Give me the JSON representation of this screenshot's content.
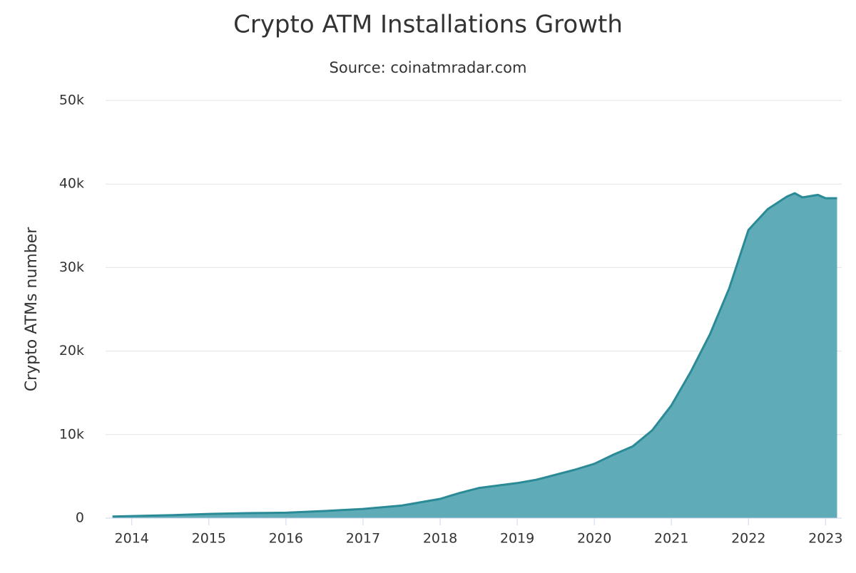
{
  "chart_data": {
    "type": "area",
    "title": "Crypto ATM Installations Growth",
    "subtitle": "Source: coinatmradar.com",
    "y_label": "Crypto ATMs number",
    "x": [
      2013.75,
      2014,
      2014.5,
      2015,
      2015.5,
      2016,
      2016.5,
      2017,
      2017.5,
      2018,
      2018.25,
      2018.5,
      2018.75,
      2019,
      2019.25,
      2019.5,
      2019.75,
      2020,
      2020.25,
      2020.5,
      2020.75,
      2021,
      2021.25,
      2021.5,
      2021.75,
      2022,
      2022.25,
      2022.5,
      2022.6,
      2022.7,
      2022.9,
      2023,
      2023.15
    ],
    "series": [
      {
        "name": "Crypto ATMs",
        "color": "#2a8b97",
        "fill": "#5fabb7",
        "values": [
          200,
          250,
          350,
          500,
          600,
          650,
          850,
          1100,
          1500,
          2300,
          3000,
          3600,
          3900,
          4200,
          4600,
          5200,
          5800,
          6500,
          7600,
          8600,
          10500,
          13500,
          17500,
          22000,
          27500,
          34500,
          37000,
          38500,
          38900,
          38400,
          38700,
          38300,
          38300
        ]
      }
    ],
    "xlim": [
      2013.66,
      2023.21
    ],
    "xticks": [
      2014,
      2015,
      2016,
      2017,
      2018,
      2019,
      2020,
      2021,
      2022,
      2023
    ],
    "ylim": [
      0,
      50000
    ],
    "yticks": [
      0,
      {
        "value": 10000,
        "label": "10k"
      },
      {
        "value": 20000,
        "label": "20k"
      },
      {
        "value": 30000,
        "label": "30k"
      },
      {
        "value": 40000,
        "label": "40k"
      },
      {
        "value": 50000,
        "label": "50k"
      }
    ],
    "grid": true
  }
}
